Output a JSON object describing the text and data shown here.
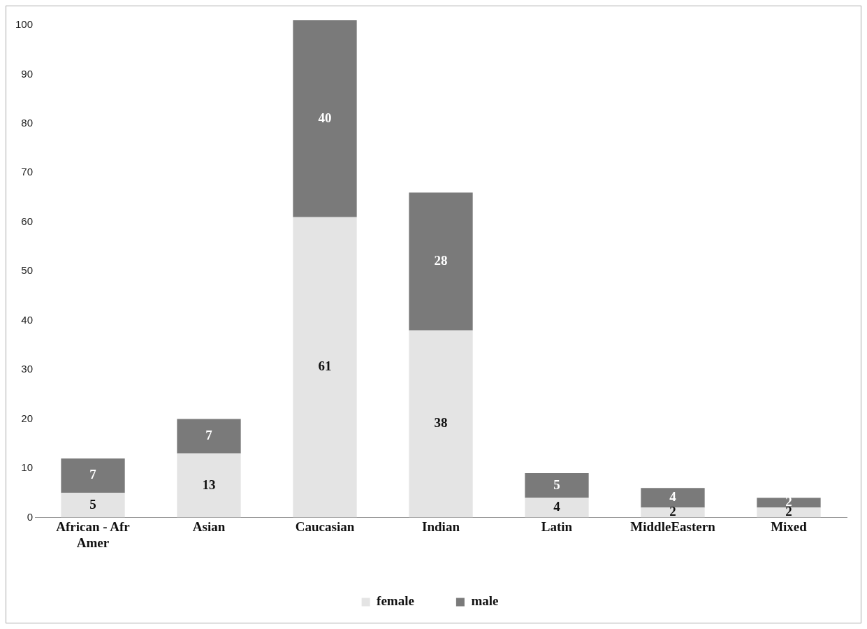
{
  "chart_data": {
    "type": "bar",
    "stacked": true,
    "categories": [
      "African - Afr Amer",
      "Asian",
      "Caucasian",
      "Indian",
      "Latin",
      "MiddleEastern",
      "Mixed"
    ],
    "series": [
      {
        "name": "female",
        "color": "#e4e4e4",
        "values": [
          5,
          13,
          61,
          38,
          4,
          2,
          2
        ]
      },
      {
        "name": "male",
        "color": "#7a7a7a",
        "values": [
          7,
          7,
          40,
          28,
          5,
          4,
          2
        ]
      }
    ],
    "ylim": [
      0,
      101
    ],
    "yticks": [
      0,
      10,
      20,
      30,
      40,
      50,
      60,
      70,
      80,
      90,
      100
    ],
    "grid": false,
    "legend": "bottom",
    "data_labels": true
  }
}
